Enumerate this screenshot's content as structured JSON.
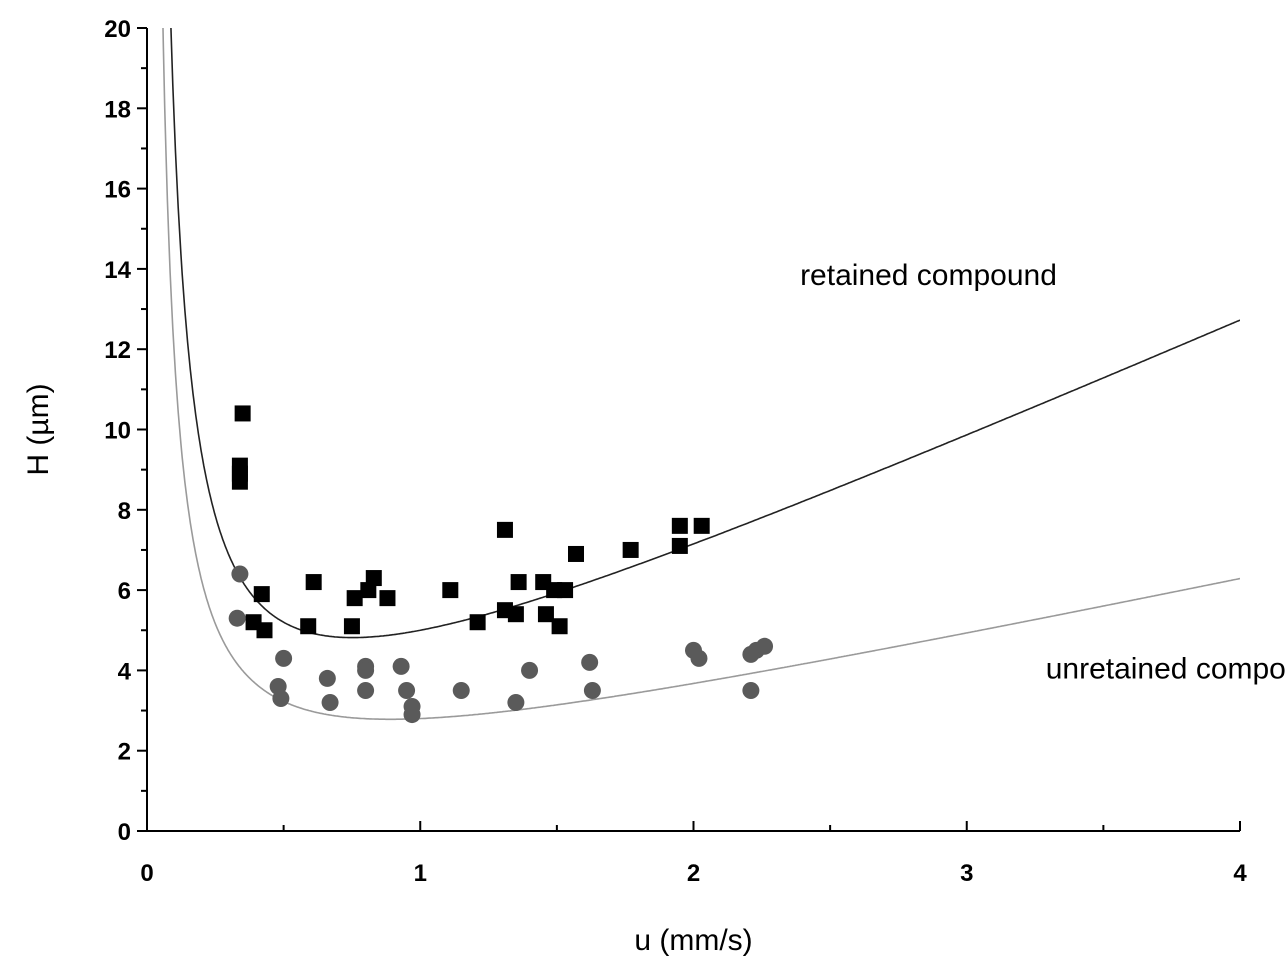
{
  "chart_data": {
    "type": "scatter",
    "xlabel": "u (mm/s)",
    "ylabel": "H (µm)",
    "xlim": [
      0,
      4
    ],
    "ylim": [
      0,
      20
    ],
    "x_ticks": [
      "0",
      "1",
      "2",
      "3",
      "4"
    ],
    "y_ticks": [
      "0",
      "2",
      "4",
      "6",
      "8",
      "10",
      "12",
      "14",
      "16",
      "18",
      "20"
    ],
    "grid": false,
    "legend": "none",
    "annotations": [
      {
        "text": "retained compound",
        "x": 2.86,
        "y": 13.6
      },
      {
        "text": "unretained compound",
        "x": 3.82,
        "y": 3.8
      }
    ],
    "series": [
      {
        "marker": "square",
        "color": "#000000",
        "points": [
          [
            0.35,
            10.4
          ],
          [
            0.34,
            9.1
          ],
          [
            0.34,
            8.9
          ],
          [
            0.34,
            8.7
          ],
          [
            0.39,
            5.2
          ],
          [
            0.42,
            5.9
          ],
          [
            0.43,
            5.0
          ],
          [
            0.59,
            5.1
          ],
          [
            0.61,
            6.2
          ],
          [
            0.75,
            5.1
          ],
          [
            0.76,
            5.8
          ],
          [
            0.81,
            6.0
          ],
          [
            0.83,
            6.3
          ],
          [
            0.88,
            5.8
          ],
          [
            1.11,
            6.0
          ],
          [
            1.21,
            5.2
          ],
          [
            1.31,
            7.5
          ],
          [
            1.31,
            5.5
          ],
          [
            1.35,
            5.4
          ],
          [
            1.36,
            6.2
          ],
          [
            1.45,
            6.2
          ],
          [
            1.46,
            5.4
          ],
          [
            1.49,
            6.0
          ],
          [
            1.51,
            5.1
          ],
          [
            1.53,
            6.0
          ],
          [
            1.57,
            6.9
          ],
          [
            1.77,
            7.0
          ],
          [
            1.95,
            7.6
          ],
          [
            1.95,
            7.1
          ],
          [
            2.03,
            7.6
          ]
        ]
      },
      {
        "marker": "circle",
        "color": "#5a5a5a",
        "points": [
          [
            0.33,
            5.3
          ],
          [
            0.34,
            6.4
          ],
          [
            0.48,
            3.6
          ],
          [
            0.49,
            3.3
          ],
          [
            0.5,
            4.3
          ],
          [
            0.66,
            3.8
          ],
          [
            0.67,
            3.2
          ],
          [
            0.8,
            4.1
          ],
          [
            0.8,
            4.0
          ],
          [
            0.8,
            3.5
          ],
          [
            0.93,
            4.1
          ],
          [
            0.95,
            3.5
          ],
          [
            0.97,
            3.1
          ],
          [
            0.97,
            2.9
          ],
          [
            1.15,
            3.5
          ],
          [
            1.35,
            3.2
          ],
          [
            1.4,
            4.0
          ],
          [
            1.62,
            4.2
          ],
          [
            1.63,
            3.5
          ],
          [
            2.0,
            4.5
          ],
          [
            2.02,
            4.3
          ],
          [
            2.21,
            4.4
          ],
          [
            2.21,
            3.5
          ],
          [
            2.23,
            4.5
          ],
          [
            2.26,
            4.6
          ]
        ]
      }
    ],
    "fit_curves": [
      {
        "color": "#222222",
        "A": 0.3,
        "B": 1.7,
        "C": 3.0
      },
      {
        "color": "#9a9a9a",
        "A": 0.2,
        "B": 1.15,
        "C": 1.45
      }
    ]
  }
}
